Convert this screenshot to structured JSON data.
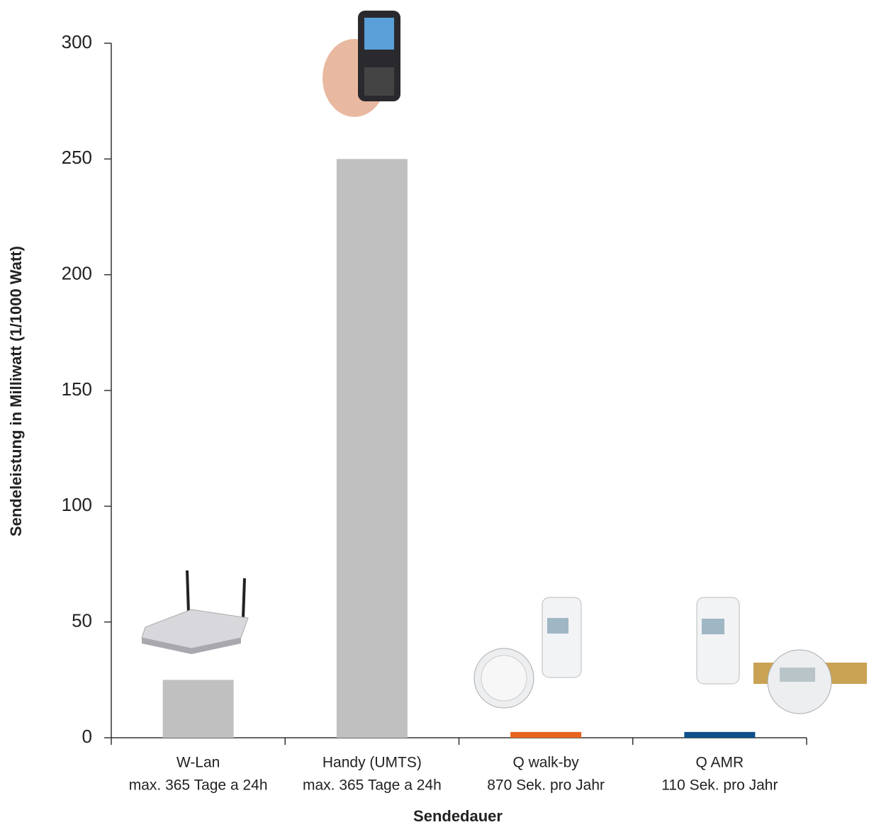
{
  "chart_data": {
    "type": "bar",
    "y_label": "Sendeleistung in Milliwatt  (1/1000 Watt)",
    "x_label": "Sendedauer",
    "categories": [
      [
        "W-Lan",
        "max. 365 Tage a 24h"
      ],
      [
        "Handy (UMTS)",
        "max. 365 Tage a 24h"
      ],
      [
        "Q walk-by",
        "870 Sek. pro Jahr"
      ],
      [
        "Q AMR",
        "110 Sek. pro Jahr"
      ]
    ],
    "values": [
      25,
      250,
      2.5,
      2.5
    ],
    "colors": [
      "#c0c0c0",
      "#c0c0c0",
      "#e8641e",
      "#0f4f8a"
    ],
    "ylim": [
      0,
      300
    ],
    "yticks": [
      0,
      50,
      100,
      150,
      200,
      250,
      300
    ],
    "grid": false
  }
}
